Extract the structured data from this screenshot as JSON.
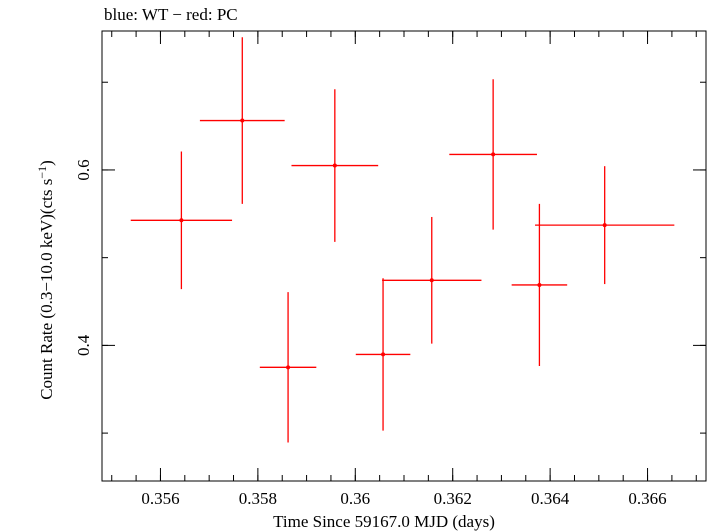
{
  "chart_data": {
    "type": "scatter",
    "title": "blue: WT − red: PC",
    "xlabel": "Time Since 59167.0 MJD (days)",
    "ylabel_main": "Count Rate (0.3−10.0 keV)(cts s",
    "ylabel_sup": "−1",
    "ylabel_end": ")",
    "xlim": [
      0.3548,
      0.3672
    ],
    "ylim": [
      0.2454,
      0.7584
    ],
    "x_ticks": [
      {
        "value": 0.356,
        "label": "0.356"
      },
      {
        "value": 0.358,
        "label": "0.358"
      },
      {
        "value": 0.36,
        "label": "0.36"
      },
      {
        "value": 0.362,
        "label": "0.362"
      },
      {
        "value": 0.364,
        "label": "0.364"
      },
      {
        "value": 0.366,
        "label": "0.366"
      }
    ],
    "x_minor_step": 0.0005,
    "y_ticks": [
      {
        "value": 0.4,
        "label": "0.4"
      },
      {
        "value": 0.6,
        "label": "0.6"
      }
    ],
    "y_minor_step": 0.1,
    "grid": false,
    "series": [
      {
        "color": "#ff0000",
        "points": [
          {
            "x": 0.35643,
            "xerr": 0.00104,
            "y": 0.5426,
            "yerr": 0.0784
          },
          {
            "x": 0.35768,
            "xerr": 0.00087,
            "y": 0.6563,
            "yerr": 0.095
          },
          {
            "x": 0.35862,
            "xerr": 0.00058,
            "y": 0.375,
            "yerr": 0.0857
          },
          {
            "x": 0.35958,
            "xerr": 0.00089,
            "y": 0.605,
            "yerr": 0.087
          },
          {
            "x": 0.36057,
            "xerr": 0.00056,
            "y": 0.3897,
            "yerr": 0.0869
          },
          {
            "x": 0.36157,
            "xerr": 0.00102,
            "y": 0.4742,
            "yerr": 0.0722
          },
          {
            "x": 0.36283,
            "xerr": 0.0009,
            "y": 0.6177,
            "yerr": 0.0857
          },
          {
            "x": 0.36378,
            "xerr": 0.00057,
            "y": 0.4689,
            "yerr": 0.0924
          },
          {
            "x": 0.36512,
            "xerr": 0.00143,
            "y": 0.5371,
            "yerr": 0.0672
          }
        ]
      }
    ]
  }
}
